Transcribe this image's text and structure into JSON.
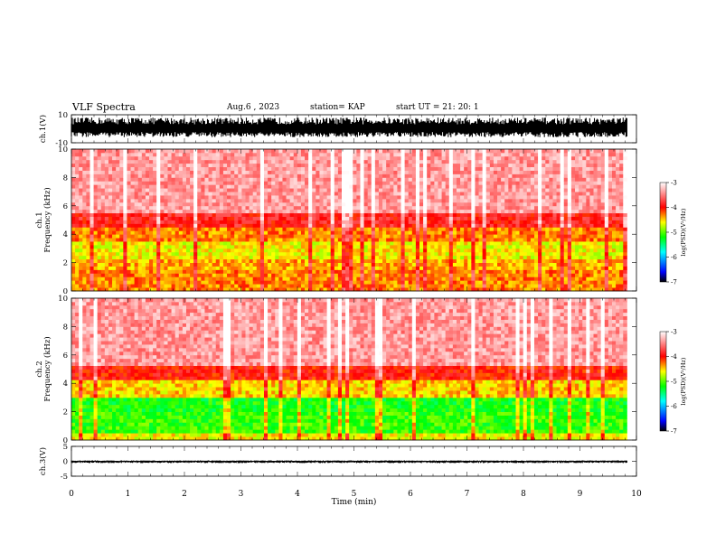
{
  "header": {
    "title": "VLF Spectra",
    "date": "Aug.6  , 2023",
    "station": "station= KAP",
    "start": "start  UT  =   21: 20: 1"
  },
  "chart_data": [
    {
      "type": "line",
      "panel": "ch1-waveform",
      "ylabel": "ch.1(V)",
      "ylim": [
        -10,
        10
      ],
      "yticks": [
        "10",
        "-10"
      ],
      "xlim": [
        0,
        10
      ],
      "data_extent_min": 9.83,
      "envelope": {
        "upper": 8,
        "lower": -6
      }
    },
    {
      "type": "heatmap",
      "panel": "ch1-spectrogram",
      "ylabel": "ch.1\nFrequency  (kHz)",
      "ylim": [
        0,
        10
      ],
      "yticks": [
        "0",
        "2",
        "4",
        "6",
        "8",
        "10"
      ],
      "xlim": [
        0,
        10
      ],
      "colorbar": {
        "label": "log(PSD)(V²/Hz)",
        "range": [
          -7,
          -3
        ],
        "ticks": [
          "-3",
          "-4",
          "-5",
          "-6",
          "-7"
        ]
      },
      "bands": [
        {
          "from": 0,
          "to": 0.8,
          "level": -4.3
        },
        {
          "from": 0.8,
          "to": 1.6,
          "level": -4.3
        },
        {
          "from": 1.6,
          "to": 2.2,
          "level": -4.4
        },
        {
          "from": 2.2,
          "to": 3.4,
          "level": -4.6
        },
        {
          "from": 3.4,
          "to": 4.4,
          "level": -4.3
        },
        {
          "from": 4.4,
          "to": 5.6,
          "level": -3.9
        },
        {
          "from": 5.6,
          "to": 10,
          "level": -3.4
        }
      ]
    },
    {
      "type": "heatmap",
      "panel": "ch2-spectrogram",
      "ylabel": "ch.2\nFrequency  (kHz)",
      "ylim": [
        0,
        10
      ],
      "yticks": [
        "0",
        "2",
        "4",
        "6",
        "8",
        "10"
      ],
      "xlim": [
        0,
        10
      ],
      "colorbar": {
        "label": "log(PSD)(V²/Hz)",
        "range": [
          -7,
          -3
        ],
        "ticks": [
          "-3",
          "-4",
          "-5",
          "-6",
          "-7"
        ]
      },
      "bands": [
        {
          "from": 0,
          "to": 0.6,
          "level": -4.6
        },
        {
          "from": 0.6,
          "to": 2.0,
          "level": -5.1
        },
        {
          "from": 2.0,
          "to": 3.0,
          "level": -5.2
        },
        {
          "from": 3.0,
          "to": 4.2,
          "level": -4.5
        },
        {
          "from": 4.2,
          "to": 5.2,
          "level": -4.0
        },
        {
          "from": 5.2,
          "to": 10,
          "level": -3.4
        }
      ]
    },
    {
      "type": "line",
      "panel": "ch3-waveform",
      "ylabel": "ch.3(V)",
      "ylim": [
        -5,
        5
      ],
      "yticks": [
        "5",
        "0",
        "-5"
      ],
      "xlim": [
        0,
        10
      ],
      "xlabel": "Time  (min)",
      "xticks": [
        "0",
        "1",
        "2",
        "3",
        "4",
        "5",
        "6",
        "7",
        "8",
        "9",
        "10"
      ],
      "data_extent_min": 9.83,
      "envelope": {
        "upper": 0.3,
        "lower": -0.6
      }
    }
  ],
  "colors": {
    "high": "#ff0000",
    "mid": "#ffff00",
    "low_mid": "#00ff00",
    "low": "#0000ff",
    "min": "#000000"
  }
}
